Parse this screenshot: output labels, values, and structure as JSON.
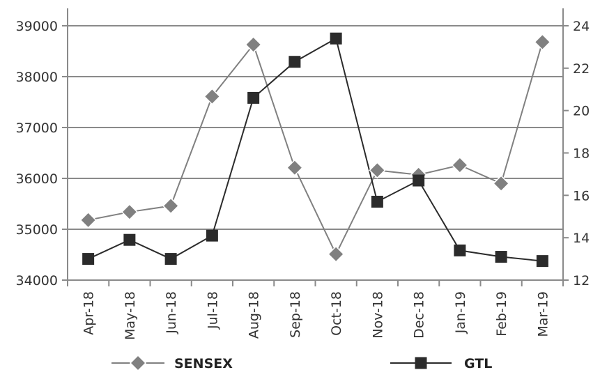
{
  "chart_data": {
    "type": "line",
    "categories": [
      "Apr-18",
      "May-18",
      "Jun-18",
      "Jul-18",
      "Aug-18",
      "Sep-18",
      "Oct-18",
      "Nov-18",
      "Dec-18",
      "Jan-19",
      "Feb-19",
      "Mar-19"
    ],
    "y_left": {
      "min": 34000,
      "max": 39000,
      "ticks": [
        34000,
        35000,
        36000,
        37000,
        38000,
        39000
      ]
    },
    "y_right": {
      "min": 12,
      "max": 24,
      "ticks": [
        12,
        14,
        16,
        18,
        20,
        22,
        24
      ]
    },
    "series": [
      {
        "name": "SENSEX",
        "axis": "left",
        "marker": "diamond",
        "color": "#808080",
        "values": [
          35180,
          35340,
          35460,
          37610,
          38630,
          36210,
          34510,
          36160,
          36070,
          36260,
          35900,
          38680
        ]
      },
      {
        "name": "GTL",
        "axis": "right",
        "marker": "square",
        "color": "#2b2b2b",
        "values": [
          13.0,
          13.9,
          13.0,
          14.1,
          20.6,
          22.3,
          23.4,
          15.7,
          16.7,
          13.4,
          13.1,
          12.9
        ]
      }
    ],
    "grid": true,
    "legend_position": "bottom"
  }
}
